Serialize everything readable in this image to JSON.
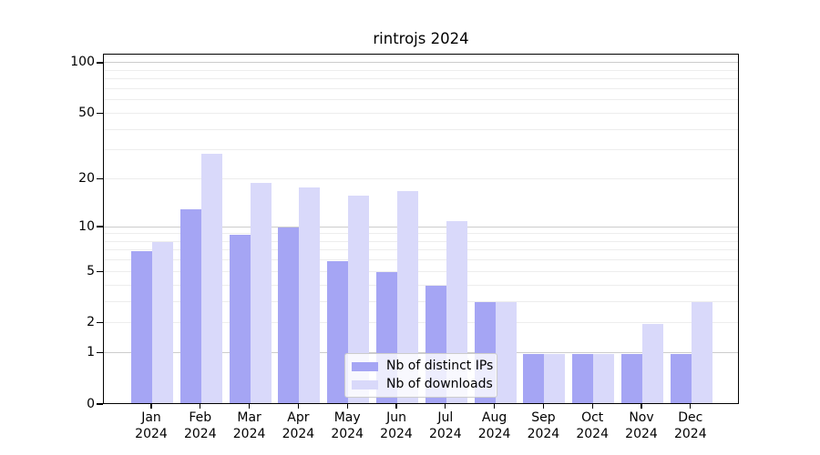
{
  "chart_data": {
    "type": "bar",
    "title": "rintrojs 2024",
    "categories": [
      "Jan",
      "Feb",
      "Mar",
      "Apr",
      "May",
      "Jun",
      "Jul",
      "Aug",
      "Sep",
      "Oct",
      "Nov",
      "Dec"
    ],
    "year_label": "2024",
    "series": [
      {
        "name": "Nb of distinct IPs",
        "color": "#a5a5f4",
        "values": [
          7,
          13,
          9,
          10,
          6,
          5,
          4,
          3,
          1,
          1,
          1,
          1
        ]
      },
      {
        "name": "Nb of downloads",
        "color": "#d9d9fa",
        "values": [
          8,
          29,
          19,
          18,
          16,
          17,
          11,
          3,
          1,
          1,
          2,
          3
        ]
      }
    ],
    "y_axis": {
      "scale": "log1p",
      "ticks": [
        100,
        50,
        20,
        10,
        5,
        2,
        1,
        0
      ],
      "top_value": 113
    },
    "gridlines": {
      "major": [
        1,
        10,
        100
      ],
      "minor": [
        2,
        3,
        4,
        5,
        6,
        7,
        8,
        9,
        20,
        30,
        40,
        50,
        60,
        70,
        80,
        90
      ]
    },
    "legend": {
      "position": "bottom-center-inside"
    },
    "colors": {
      "background": "#ffffff",
      "axis": "#000000",
      "grid_minor": "#ededed",
      "grid_major": "#cccccc"
    }
  }
}
